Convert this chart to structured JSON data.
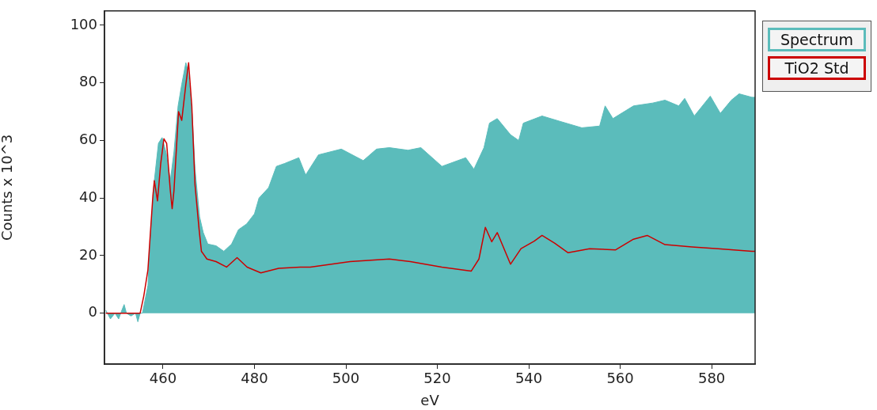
{
  "chart_data": {
    "type": "area",
    "xlabel": "eV",
    "ylabel": "Counts x 10^3",
    "xlim": [
      447.2,
      589.5
    ],
    "xticks": [
      460,
      480,
      500,
      520,
      540,
      560,
      580
    ],
    "ylim": [
      -17.7,
      105
    ],
    "yticks": [
      0,
      20,
      40,
      60,
      80,
      100
    ],
    "grid": false,
    "legend": "top right",
    "series": [
      {
        "name": "Spectrum",
        "color": "#5bbcbb",
        "x": [
          447.5,
          448.5,
          449.5,
          450.3,
          451,
          451.5,
          452,
          453,
          454,
          454.5,
          455,
          455.5,
          456.7,
          457.2,
          458.1,
          459,
          459.8,
          460.7,
          461.6,
          462.4,
          463.3,
          464.1,
          465,
          465.5,
          466.4,
          467,
          468,
          468.8,
          469.8,
          471.6,
          473.3,
          475,
          476.5,
          478.3,
          480,
          481,
          483.1,
          484.8,
          486.6,
          489.7,
          491.2,
          494,
          499,
          503.8,
          506.7,
          509.5,
          513.6,
          516.4,
          521,
          526.2,
          528,
          530.2,
          531.4,
          533.1,
          536,
          537.8,
          538.8,
          542.9,
          546.9,
          551.6,
          555.5,
          556.7,
          558.4,
          562.9,
          567.1,
          569.8,
          572.8,
          574.1,
          576.2,
          579.7,
          581.9,
          584.3,
          586,
          588.8,
          589.5
        ],
        "values": [
          1,
          -2,
          0,
          -2,
          1,
          3,
          0,
          -1,
          0,
          -3,
          0,
          0,
          9.6,
          26,
          46,
          59,
          61,
          55.6,
          46,
          56,
          72,
          79.5,
          87,
          84,
          68.5,
          50,
          33.5,
          28,
          24,
          23.4,
          21.5,
          24,
          29,
          31,
          34.5,
          40,
          43.6,
          51,
          52,
          54,
          48,
          55,
          57,
          53,
          57,
          57.5,
          56.6,
          57.5,
          51,
          54,
          50,
          57.5,
          66,
          67.6,
          62,
          60,
          66,
          68.5,
          66.6,
          64.4,
          65,
          72,
          67.6,
          72,
          73,
          74,
          72,
          74.6,
          68.5,
          75.4,
          69.4,
          74,
          76.2,
          75,
          75
        ]
      },
      {
        "name": "TiO2 Std",
        "type": "line",
        "color": "#cc0000",
        "x": [
          447.5,
          450,
          452.5,
          455,
          455.8,
          456.7,
          457.2,
          457.8,
          458.1,
          458.8,
          459.5,
          460.2,
          460.8,
          461.6,
          462,
          462.4,
          463.4,
          464.1,
          465,
          465.6,
          466.3,
          467,
          467.9,
          468.4,
          469.6,
          471.6,
          473.9,
          476.2,
          478.4,
          481.4,
          485.3,
          490,
          492.2,
          500.9,
          509.5,
          514.1,
          521,
          527.4,
          529.1,
          530.5,
          531.9,
          533.1,
          536,
          538.3,
          541.2,
          542.9,
          545.7,
          548.6,
          553.3,
          559,
          562.9,
          565.9,
          569.8,
          575.7,
          581.4,
          588.8,
          589.5
        ],
        "values": [
          0,
          0,
          0,
          0,
          6,
          15,
          27,
          41,
          46,
          39,
          52,
          60.6,
          59,
          42.6,
          36.3,
          42.6,
          70,
          67,
          79.5,
          87,
          72,
          44.6,
          29,
          21.5,
          18.8,
          17.9,
          16,
          19.3,
          16,
          14,
          15.6,
          16,
          16,
          17.9,
          18.8,
          17.9,
          16,
          14.6,
          18.8,
          29.8,
          24.8,
          28,
          17,
          22.4,
          25,
          27,
          24.3,
          21,
          22.4,
          22,
          25.7,
          27,
          23.8,
          23,
          22.4,
          21.5,
          21.5
        ]
      }
    ]
  }
}
